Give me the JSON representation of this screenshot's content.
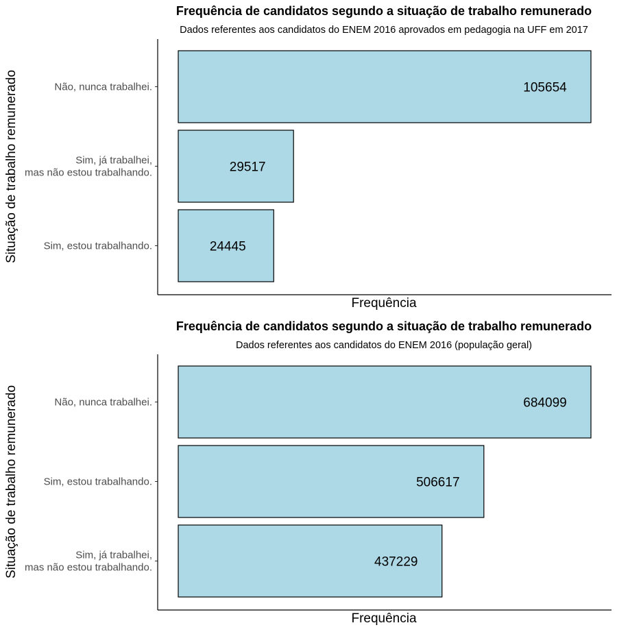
{
  "chart_data": [
    {
      "type": "bar",
      "orientation": "horizontal",
      "title": "Frequência de candidatos segundo a situação de trabalho remunerado",
      "subtitle": "Dados referentes aos candidatos do ENEM 2016 aprovados em pedagogia na UFF em 2017",
      "xlabel": "Frequência",
      "ylabel": "Situação de trabalho remunerado",
      "categories": [
        "Não, nunca trabalhei.",
        "Sim, já trabalhei,\nmas não estou trabalhando.",
        "Sim, estou trabalhando."
      ],
      "values": [
        105654,
        29517,
        24445
      ],
      "data_labels": [
        "105654",
        "29517",
        "24445"
      ],
      "bar_color": "#add8e6",
      "bar_edge_color": "#000000",
      "grid": false,
      "legend": false
    },
    {
      "type": "bar",
      "orientation": "horizontal",
      "title": "Frequência de candidatos segundo a situação de trabalho remunerado",
      "subtitle": "Dados referentes aos candidatos do ENEM 2016 (população geral)",
      "xlabel": "Frequência",
      "ylabel": "Situação de trabalho remunerado",
      "categories": [
        "Não, nunca trabalhei.",
        "Sim, estou trabalhando.",
        "Sim, já trabalhei,\nmas não estou trabalhando."
      ],
      "values": [
        684099,
        506617,
        437229
      ],
      "data_labels": [
        "684099",
        "506617",
        "437229"
      ],
      "bar_color": "#add8e6",
      "bar_edge_color": "#000000",
      "grid": false,
      "legend": false
    }
  ]
}
